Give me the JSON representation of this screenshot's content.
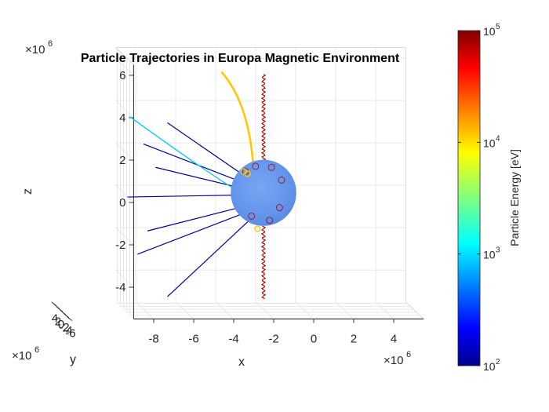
{
  "chart_data": {
    "type": "line",
    "projection": "3d",
    "title": "Particle Trajectories in Europa Magnetic Environment",
    "xlabel": "x",
    "ylabel": "y",
    "zlabel": "z",
    "x_exponent": "×10^6",
    "y_exponent": "×10^6",
    "z_exponent": "×10^6",
    "xlim": [
      -9,
      5.5
    ],
    "ylim": [
      -6.5,
      5
    ],
    "zlim": [
      -5.5,
      6.5
    ],
    "x_ticks": [
      -8,
      -6,
      -4,
      -2,
      0,
      2,
      4
    ],
    "y_ticks": [
      4,
      2,
      0,
      -2,
      -4,
      -6
    ],
    "z_ticks": [
      -4,
      -2,
      0,
      2,
      4,
      6
    ],
    "x_tick_labels": [
      "-8",
      "-6",
      "-4",
      "-2",
      "0",
      "2",
      "4"
    ],
    "y_tick_labels": [
      "4",
      "2",
      "0",
      "-2",
      "-4",
      "-6"
    ],
    "z_tick_labels": [
      "-4",
      "-2",
      "0",
      "2",
      "4",
      "6"
    ],
    "grid": true,
    "colorbar": {
      "label": "Particle Energy [eV]",
      "scale": "log",
      "colormap": "jet",
      "range": [
        100,
        100000
      ],
      "ticks": [
        {
          "base": "10",
          "exp": "2",
          "value": 100
        },
        {
          "base": "10",
          "exp": "3",
          "value": 1000
        },
        {
          "base": "10",
          "exp": "4",
          "value": 10000
        },
        {
          "base": "10",
          "exp": "5",
          "value": 100000
        }
      ]
    },
    "sphere": {
      "center": [
        -2,
        0,
        0
      ],
      "radius": 1.56,
      "color": "#6495ed"
    },
    "series": [
      {
        "energy": 150,
        "color": "#00008f",
        "start": [
          -6.8,
          0,
          3.3
        ],
        "end": [
          -2.8,
          0,
          0.7
        ]
      },
      {
        "energy": 150,
        "color": "#00008f",
        "start": [
          -8.0,
          0,
          2.3
        ],
        "end": [
          -2.8,
          0,
          0.4
        ]
      },
      {
        "energy": 150,
        "color": "#00008f",
        "start": [
          -7.4,
          0,
          1.2
        ],
        "end": [
          -2.8,
          0,
          0.15
        ]
      },
      {
        "energy": 150,
        "color": "#00008f",
        "start": [
          -8.8,
          0,
          -0.2
        ],
        "end": [
          -2.8,
          0,
          -0.1
        ]
      },
      {
        "energy": 150,
        "color": "#00008f",
        "start": [
          -7.8,
          0,
          -1.8
        ],
        "end": [
          -2.8,
          0,
          -0.6
        ]
      },
      {
        "energy": 150,
        "color": "#00008f",
        "start": [
          -8.3,
          0,
          -2.9
        ],
        "end": [
          -2.8,
          0,
          -0.9
        ]
      },
      {
        "energy": 150,
        "color": "#00008f",
        "start": [
          -6.8,
          0,
          -4.9
        ],
        "end": [
          -2.6,
          0,
          -1.2
        ]
      },
      {
        "energy": 2000,
        "color": "#00c8ff",
        "start": [
          -8.7,
          0,
          3.6
        ],
        "end": [
          -3.0,
          0,
          -0.1
        ]
      },
      {
        "energy": 15000,
        "color": "#ffc800",
        "start": [
          -4.1,
          0,
          5.7
        ],
        "end": [
          -2.5,
          0,
          1.1
        ]
      },
      {
        "energy": 60000,
        "color": "#a00000",
        "start": [
          -2.0,
          0,
          5.6
        ],
        "end": [
          -2.0,
          0,
          -5.0
        ]
      }
    ]
  }
}
